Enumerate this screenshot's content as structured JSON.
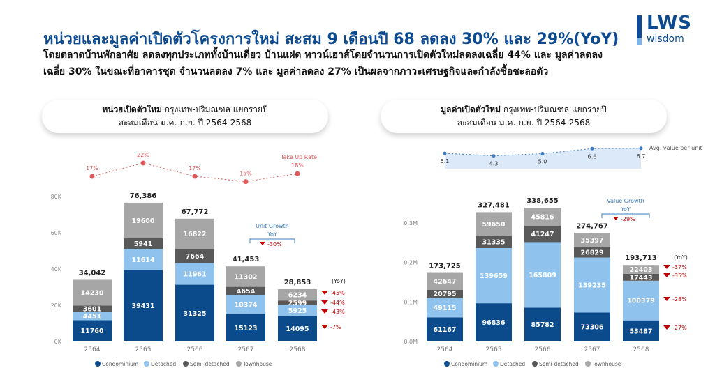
{
  "header": {
    "title": "หน่วยและมูลค่าเปิดตัวโครงการใหม่ สะสม 9 เดือนปี 68 ลดลง 30% และ 29%(YoY)",
    "line1": "โดยตลาดบ้านพักอาศัย ลดลงทุกประเภททั้งบ้านเดี่ยว บ้านแฝด ทาวน์เฮาส์โดยจำนวนการเปิดตัวใหม่ลดลงเฉลี่ย 44% และ มูลค่าลดลง",
    "line2": "เฉลี่ย 30%  ในขณะที่อาคารชุด จำนวนลดลง 7% และ มูลค่าลดลง 27% เป็นผลจากภาวะเศรษฐกิจและกำลังซื้อชะลอตัว",
    "logo_main": "LWS",
    "logo_sub": "wisdom"
  },
  "colors": {
    "Condominium": "#0b4a8b",
    "Detached": "#8fc3ee",
    "Semi-detached": "#595959",
    "Townhouse": "#a6a6a6",
    "accent": "#c00000",
    "blue": "#3a7dc4",
    "rate": "#e05a5a"
  },
  "chart_data": [
    {
      "type": "bar",
      "stacked": true,
      "title_bold": "หน่วยเปิดตัวใหม่",
      "title_rest": " กรุงเทพ-ปริมณฑล แยกรายปี",
      "subtitle": "สะสมเดือน ม.ค.-ก.ย. ปี 2564-2568",
      "categories": [
        "2564",
        "2565",
        "2566",
        "2567",
        "2568"
      ],
      "series": [
        {
          "name": "Condominium",
          "values": [
            11760,
            39431,
            31325,
            15123,
            14095
          ]
        },
        {
          "name": "Detached",
          "values": [
            4451,
            11614,
            11961,
            10374,
            5925
          ]
        },
        {
          "name": "Semi-detached",
          "values": [
            3601,
            5941,
            7664,
            4654,
            2599
          ]
        },
        {
          "name": "Townhouse",
          "values": [
            14230,
            19600,
            16822,
            11302,
            6234
          ]
        }
      ],
      "totals": [
        "34,042",
        "76,386",
        "67,772",
        "41,453",
        "28,853"
      ],
      "yticks": [
        "0K",
        "20K",
        "40K",
        "60K",
        "80K"
      ],
      "ylim": [
        0,
        80000
      ],
      "line": {
        "name": "Take Up Rate",
        "labels": [
          "17%",
          "22%",
          "17%",
          "15%",
          "18%"
        ],
        "values": [
          17,
          22,
          17,
          15,
          18
        ]
      },
      "growth": {
        "label1": "Unit Growth",
        "label2": "YoY",
        "value": "-30%"
      },
      "yoy_header": "(YoY)",
      "yoy": [
        "-45%",
        "-44%",
        "-43%",
        "-7%"
      ],
      "legend": [
        "Condominium",
        "Detached",
        "Semi-detached",
        "Townhouse"
      ]
    },
    {
      "type": "bar",
      "stacked": true,
      "title_bold": "มูลค่าเปิดตัวใหม่",
      "title_rest": " กรุงเทพ-ปริมณฑล แยกรายปี",
      "subtitle": "สะสมเดือน ม.ค.-ก.ย. ปี 2564-2568",
      "categories": [
        "2564",
        "2565",
        "2566",
        "2567",
        "2568"
      ],
      "series": [
        {
          "name": "Condominium",
          "values": [
            61167,
            96836,
            85782,
            73306,
            53487
          ]
        },
        {
          "name": "Detached",
          "values": [
            49115,
            139659,
            165809,
            139235,
            100379
          ]
        },
        {
          "name": "Semi-detached",
          "values": [
            20795,
            31335,
            41247,
            26829,
            17443
          ]
        },
        {
          "name": "Townhouse",
          "values": [
            42647,
            59650,
            45816,
            35397,
            22403
          ]
        }
      ],
      "totals": [
        "173,725",
        "327,481",
        "338,655",
        "274,767",
        "193,713"
      ],
      "yticks": [
        "0.0M",
        "0.1M",
        "0.2M",
        "0.3M"
      ],
      "ylim": [
        0,
        300000
      ],
      "line": {
        "name": "Avg. value per unit",
        "labels": [
          "5.1",
          "4.3",
          "5.0",
          "6.6",
          "6.7"
        ],
        "values": [
          5.1,
          4.3,
          5.0,
          6.6,
          6.7
        ]
      },
      "growth": {
        "label1": "Value Growth",
        "label2": "YoY",
        "value": "-29%"
      },
      "yoy_header": "(YoY)",
      "yoy": [
        "-37%",
        "-35%",
        "-28%",
        "-27%"
      ],
      "legend": [
        "Condominium",
        "Detached",
        "Semi-detached",
        "Townhouse"
      ]
    }
  ]
}
